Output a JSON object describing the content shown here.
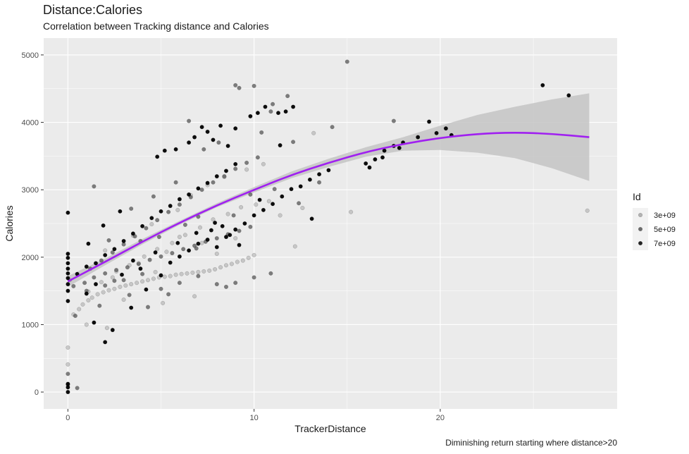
{
  "chart_data": {
    "type": "scatter",
    "title": "Distance:Calories",
    "subtitle": "Correlation between Tracking distance and Calories",
    "caption": "Diminishing return starting where distance>20",
    "xlabel": "TrackerDistance",
    "ylabel": "Calories",
    "xlim": [
      -1.3,
      29.5
    ],
    "ylim": [
      -250,
      5250
    ],
    "x_ticks": [
      0,
      10,
      20
    ],
    "y_ticks": [
      0,
      1000,
      2000,
      3000,
      4000,
      5000
    ],
    "grid": true,
    "legend": {
      "title": "Id",
      "placement": "right",
      "entries": [
        {
          "label": "3e+09",
          "color": "#a8a8a8"
        },
        {
          "label": "5e+09",
          "color": "#555555"
        },
        {
          "label": "7e+09",
          "color": "#000000"
        }
      ]
    },
    "trend": {
      "color": "#a020f0",
      "band_color": "#c4c4c4",
      "points": [
        [
          0,
          1640
        ],
        [
          2,
          1930
        ],
        [
          4,
          2230
        ],
        [
          6,
          2510
        ],
        [
          8,
          2770
        ],
        [
          10,
          3000
        ],
        [
          12,
          3220
        ],
        [
          14,
          3400
        ],
        [
          16,
          3560
        ],
        [
          18,
          3680
        ],
        [
          20,
          3770
        ],
        [
          22,
          3830
        ],
        [
          24,
          3850
        ],
        [
          26,
          3830
        ],
        [
          28,
          3780
        ]
      ],
      "band": [
        [
          0,
          1560,
          1720
        ],
        [
          2,
          1880,
          1980
        ],
        [
          4,
          2190,
          2270
        ],
        [
          6,
          2480,
          2540
        ],
        [
          8,
          2740,
          2800
        ],
        [
          10,
          2960,
          3040
        ],
        [
          12,
          3170,
          3270
        ],
        [
          14,
          3340,
          3460
        ],
        [
          16,
          3490,
          3630
        ],
        [
          18,
          3580,
          3780
        ],
        [
          20,
          3590,
          3950
        ],
        [
          22,
          3550,
          4110
        ],
        [
          24,
          3470,
          4230
        ],
        [
          26,
          3320,
          4340
        ],
        [
          28,
          3130,
          4430
        ]
      ]
    },
    "series": [
      {
        "name": "3e+09",
        "color": "#a8a8a8",
        "opacity": 0.55,
        "points": [
          [
            0,
            660
          ],
          [
            0,
            410
          ],
          [
            0.1,
            1660
          ],
          [
            0.3,
            1150
          ],
          [
            0.6,
            1230
          ],
          [
            0.8,
            1300
          ],
          [
            1.1,
            1360
          ],
          [
            1.3,
            1400
          ],
          [
            1.6,
            1450
          ],
          [
            1.9,
            1480
          ],
          [
            2.2,
            1510
          ],
          [
            2.5,
            1530
          ],
          [
            2.8,
            1560
          ],
          [
            3.1,
            1580
          ],
          [
            3.4,
            1600
          ],
          [
            3.7,
            1620
          ],
          [
            4.0,
            1640
          ],
          [
            4.3,
            1660
          ],
          [
            4.6,
            1680
          ],
          [
            4.9,
            1700
          ],
          [
            5.2,
            1710
          ],
          [
            5.5,
            1720
          ],
          [
            5.8,
            1740
          ],
          [
            6.1,
            1750
          ],
          [
            6.4,
            1760
          ],
          [
            6.7,
            1770
          ],
          [
            7.0,
            1780
          ],
          [
            7.3,
            1790
          ],
          [
            7.6,
            1800
          ],
          [
            7.9,
            1820
          ],
          [
            8.2,
            1850
          ],
          [
            8.5,
            1880
          ],
          [
            8.8,
            1900
          ],
          [
            9.1,
            1930
          ],
          [
            9.4,
            1950
          ],
          [
            9.7,
            1990
          ],
          [
            10.0,
            2030
          ],
          [
            1.1,
            1490
          ],
          [
            1.8,
            1630
          ],
          [
            2.6,
            1790
          ],
          [
            3.3,
            1880
          ],
          [
            4.1,
            2010
          ],
          [
            4.8,
            2120
          ],
          [
            5.6,
            2210
          ],
          [
            6.3,
            2330
          ],
          [
            7.1,
            2440
          ],
          [
            7.8,
            2560
          ],
          [
            8.6,
            2640
          ],
          [
            9.3,
            2740
          ],
          [
            10.1,
            2780
          ],
          [
            10.8,
            2830
          ],
          [
            11.4,
            2620
          ],
          [
            12.2,
            2160
          ],
          [
            12.6,
            2730
          ],
          [
            13.2,
            3840
          ],
          [
            15.2,
            2670
          ],
          [
            27.9,
            2690
          ],
          [
            1.0,
            1000
          ],
          [
            2.1,
            950
          ],
          [
            3.0,
            1370
          ],
          [
            5.1,
            1320
          ],
          [
            6.8,
            1420
          ],
          [
            2.0,
            2100
          ],
          [
            3.5,
            2320
          ],
          [
            4.5,
            2490
          ],
          [
            5.9,
            2700
          ],
          [
            6.6,
            2920
          ],
          [
            7.5,
            3070
          ],
          [
            8.4,
            3190
          ],
          [
            9.6,
            3300
          ],
          [
            10.5,
            3380
          ],
          [
            2.4,
            1700
          ],
          [
            3.8,
            1910
          ],
          [
            5.3,
            2080
          ],
          [
            6.0,
            2300
          ],
          [
            7.2,
            2210
          ],
          [
            8.0,
            2050
          ],
          [
            9.0,
            2280
          ],
          [
            4.7,
            1780
          ]
        ]
      },
      {
        "name": "5e+09",
        "color": "#555555",
        "opacity": 0.75,
        "points": [
          [
            0,
            270
          ],
          [
            0,
            110
          ],
          [
            0.5,
            60
          ],
          [
            0.3,
            1570
          ],
          [
            0.9,
            1620
          ],
          [
            1.4,
            1700
          ],
          [
            2.0,
            1760
          ],
          [
            2.6,
            1810
          ],
          [
            3.2,
            1850
          ],
          [
            3.8,
            1900
          ],
          [
            4.4,
            1960
          ],
          [
            5.0,
            2010
          ],
          [
            5.6,
            2060
          ],
          [
            6.2,
            2120
          ],
          [
            6.8,
            2170
          ],
          [
            7.4,
            2230
          ],
          [
            8.0,
            2280
          ],
          [
            8.6,
            2340
          ],
          [
            9.2,
            2390
          ],
          [
            9.8,
            2450
          ],
          [
            1.2,
            1830
          ],
          [
            1.8,
            1950
          ],
          [
            2.4,
            2070
          ],
          [
            3.0,
            2190
          ],
          [
            3.6,
            2310
          ],
          [
            4.2,
            2430
          ],
          [
            4.8,
            2550
          ],
          [
            5.4,
            2670
          ],
          [
            6.0,
            2780
          ],
          [
            6.6,
            2890
          ],
          [
            7.2,
            3000
          ],
          [
            7.8,
            3110
          ],
          [
            8.4,
            3200
          ],
          [
            9.0,
            3310
          ],
          [
            9.6,
            3400
          ],
          [
            10.2,
            3480
          ],
          [
            1.4,
            3050
          ],
          [
            2.2,
            2250
          ],
          [
            3.4,
            2720
          ],
          [
            4.6,
            2900
          ],
          [
            5.8,
            3110
          ],
          [
            6.5,
            4020
          ],
          [
            7.3,
            3600
          ],
          [
            8.1,
            3700
          ],
          [
            9.0,
            4550
          ],
          [
            9.2,
            4510
          ],
          [
            10.0,
            4540
          ],
          [
            10.4,
            3850
          ],
          [
            10.9,
            4160
          ],
          [
            11.0,
            4270
          ],
          [
            11.8,
            4390
          ],
          [
            12.1,
            3710
          ],
          [
            14.2,
            3930
          ],
          [
            15.0,
            4900
          ],
          [
            17.5,
            4020
          ],
          [
            12.4,
            2800
          ],
          [
            13.5,
            3110
          ],
          [
            1.0,
            1500
          ],
          [
            2.0,
            1580
          ],
          [
            3.0,
            1660
          ],
          [
            4.0,
            1750
          ],
          [
            5.0,
            1530
          ],
          [
            6.0,
            1620
          ],
          [
            7.0,
            1720
          ],
          [
            8.0,
            1600
          ],
          [
            8.5,
            1560
          ],
          [
            9.0,
            1620
          ],
          [
            10.0,
            1700
          ],
          [
            10.9,
            1760
          ],
          [
            4.3,
            1260
          ],
          [
            5.4,
            1450
          ],
          [
            1.7,
            1280
          ],
          [
            3.3,
            1440
          ],
          [
            0.4,
            1130
          ],
          [
            2.5,
            1650
          ],
          [
            4.9,
            2300
          ],
          [
            6.3,
            2480
          ],
          [
            7.0,
            2600
          ],
          [
            8.9,
            2620
          ],
          [
            9.8,
            2930
          ],
          [
            11.1,
            3010
          ],
          [
            3.9,
            2240
          ],
          [
            6.9,
            2130
          ]
        ]
      },
      {
        "name": "7e+09",
        "color": "#000000",
        "opacity": 0.95,
        "points": [
          [
            0,
            0
          ],
          [
            0,
            70
          ],
          [
            0,
            120
          ],
          [
            0,
            1350
          ],
          [
            0,
            1500
          ],
          [
            0,
            1600
          ],
          [
            0,
            1690
          ],
          [
            0,
            1760
          ],
          [
            0,
            1830
          ],
          [
            0,
            1910
          ],
          [
            0,
            1990
          ],
          [
            0,
            2050
          ],
          [
            0,
            2660
          ],
          [
            0.5,
            1750
          ],
          [
            1.0,
            1860
          ],
          [
            1.5,
            1910
          ],
          [
            2.0,
            2030
          ],
          [
            2.5,
            2120
          ],
          [
            3.0,
            2240
          ],
          [
            3.5,
            2350
          ],
          [
            4.0,
            2460
          ],
          [
            4.5,
            2580
          ],
          [
            5.0,
            2680
          ],
          [
            5.5,
            2760
          ],
          [
            6.0,
            2860
          ],
          [
            6.5,
            2930
          ],
          [
            7.0,
            3020
          ],
          [
            7.5,
            3100
          ],
          [
            8.0,
            3200
          ],
          [
            8.5,
            3280
          ],
          [
            9.0,
            3380
          ],
          [
            1.0,
            1460
          ],
          [
            1.4,
            1030
          ],
          [
            1.5,
            1600
          ],
          [
            2.4,
            920
          ],
          [
            2.0,
            740
          ],
          [
            3.4,
            1250
          ],
          [
            4.2,
            1520
          ],
          [
            5.0,
            1730
          ],
          [
            5.5,
            1920
          ],
          [
            6.0,
            2010
          ],
          [
            6.5,
            2100
          ],
          [
            7.0,
            2200
          ],
          [
            7.5,
            2260
          ],
          [
            8.0,
            2150
          ],
          [
            8.5,
            2300
          ],
          [
            9.0,
            2410
          ],
          [
            9.5,
            2500
          ],
          [
            10.0,
            2620
          ],
          [
            10.5,
            2700
          ],
          [
            11.0,
            2790
          ],
          [
            11.5,
            2900
          ],
          [
            12.0,
            3010
          ],
          [
            12.5,
            3050
          ],
          [
            13.0,
            3150
          ],
          [
            13.5,
            3230
          ],
          [
            14.0,
            3290
          ],
          [
            4.8,
            3490
          ],
          [
            5.2,
            3580
          ],
          [
            5.8,
            3600
          ],
          [
            6.5,
            3700
          ],
          [
            6.8,
            3780
          ],
          [
            7.2,
            3930
          ],
          [
            7.5,
            3860
          ],
          [
            7.8,
            3740
          ],
          [
            8.2,
            3950
          ],
          [
            8.6,
            3650
          ],
          [
            9.0,
            3910
          ],
          [
            9.8,
            4090
          ],
          [
            10.2,
            4140
          ],
          [
            10.6,
            4230
          ],
          [
            11.3,
            4140
          ],
          [
            11.7,
            4160
          ],
          [
            12.1,
            4230
          ],
          [
            7.7,
            2400
          ],
          [
            8.3,
            2460
          ],
          [
            8.7,
            2330
          ],
          [
            9.2,
            2180
          ],
          [
            10.3,
            2850
          ],
          [
            11.4,
            3660
          ],
          [
            13.1,
            2570
          ],
          [
            16.0,
            3390
          ],
          [
            16.5,
            3450
          ],
          [
            17.0,
            3580
          ],
          [
            17.5,
            3650
          ],
          [
            18.0,
            3700
          ],
          [
            18.8,
            3780
          ],
          [
            19.4,
            4010
          ],
          [
            19.8,
            3840
          ],
          [
            20.3,
            3910
          ],
          [
            20.6,
            3810
          ],
          [
            16.2,
            3330
          ],
          [
            16.9,
            3480
          ],
          [
            17.8,
            3620
          ],
          [
            25.5,
            4550
          ],
          [
            26.9,
            4400
          ],
          [
            3.5,
            1950
          ],
          [
            4.7,
            2070
          ],
          [
            5.9,
            2210
          ],
          [
            6.9,
            2360
          ],
          [
            7.9,
            2510
          ],
          [
            2.9,
            1740
          ],
          [
            3.9,
            1830
          ],
          [
            1.1,
            2200
          ],
          [
            1.9,
            2470
          ],
          [
            2.8,
            2680
          ]
        ]
      }
    ]
  }
}
